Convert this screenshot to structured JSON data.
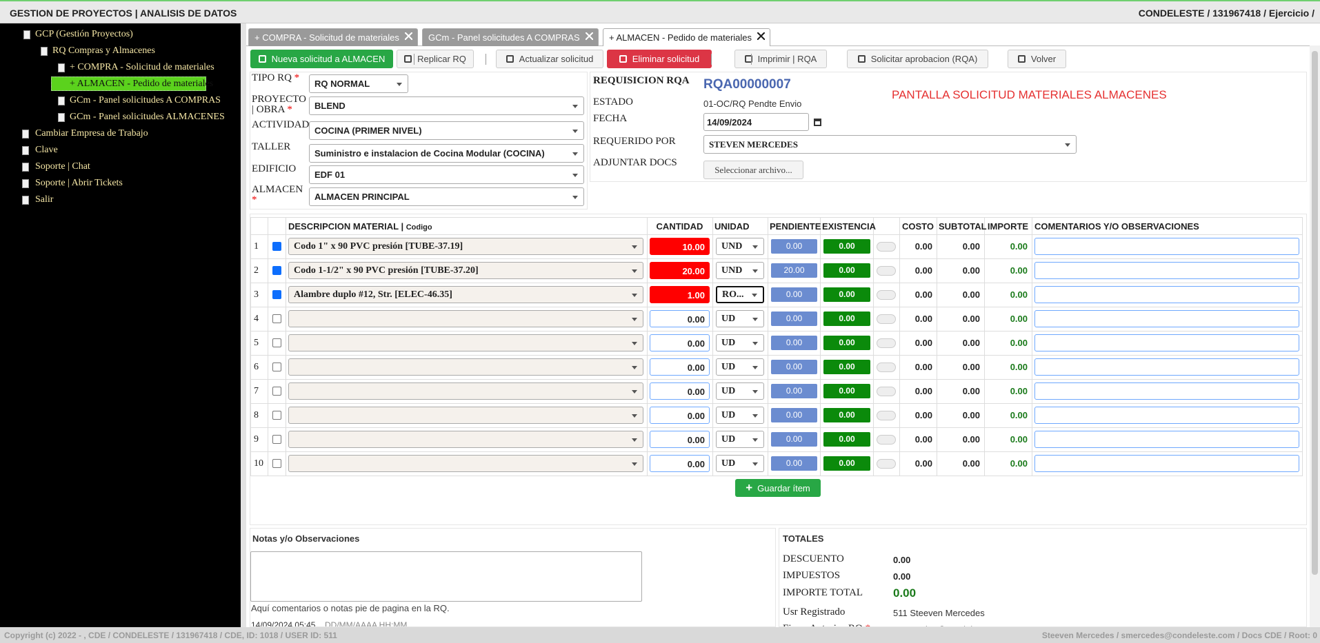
{
  "header": {
    "title": "GESTION DE PROYECTOS | ANALISIS DE DATOS",
    "account": "CONDELESTE / 131967418 / Ejercicio /"
  },
  "sidebar": {
    "tree": [
      {
        "label": "GCP (Gestión Proyectos)",
        "children": [
          {
            "label": "RQ Compras y Almacenes",
            "children": [
              {
                "label": "+ COMPRA - Solicitud de materiales"
              },
              {
                "label": "+ ALMACEN - Pedido de materiales",
                "selected": true
              },
              {
                "label": "GCm - Panel solicitudes A COMPRAS"
              },
              {
                "label": "GCm - Panel solicitudes ALMACENES"
              }
            ]
          }
        ]
      }
    ],
    "links": [
      "Cambiar Empresa de Trabajo",
      "Clave",
      "Soporte | Chat",
      "Soporte | Abrir Tickets",
      "Salir"
    ]
  },
  "tabs": [
    {
      "label": "+ COMPRA - Solicitud de materiales",
      "active": false
    },
    {
      "label": "GCm - Panel solicitudes A COMPRAS",
      "active": false
    },
    {
      "label": "+ ALMACEN - Pedido de materiales",
      "active": true
    }
  ],
  "toolbar": [
    "Nueva solicitud a ALMACEN",
    "Replicar RQ",
    "Actualizar solicitud",
    "Eliminar solicitud",
    "Imprimir | RQA",
    "Solicitar aprobacion (RQA)",
    "Volver"
  ],
  "form": {
    "fields": [
      {
        "label": "TIPO RQ",
        "required": "*",
        "value": "RQ NORMAL"
      },
      {
        "label": "PROYECTO | OBRA",
        "required": "*",
        "value": "BLEND"
      },
      {
        "label": "ACTIVIDAD",
        "value": "COCINA (PRIMER NIVEL)"
      },
      {
        "label": "TALLER",
        "value": "Suministro e instalacion de Cocina Modular (COCINA)"
      },
      {
        "label": "EDIFICIO",
        "value": "EDF 01"
      },
      {
        "label": "ALMACEN",
        "required": "*",
        "value": "ALMACEN PRINCIPAL"
      }
    ]
  },
  "request": {
    "title": "REQUISICION RQA",
    "number": "RQA00000007",
    "banner": "PANTALLA SOLICITUD MATERIALES ALMACENES",
    "status_label": "ESTADO",
    "status": "01-OC/RQ Pendte Envio",
    "date_label": "FECHA",
    "date": "14/09/2024",
    "requested_by_label": "REQUERIDO POR",
    "requested_by": "STEVEN MERCEDES",
    "attach_label": "ADJUNTAR DOCS",
    "attach_button": "Seleccionar archivo..."
  },
  "items": {
    "headers": {
      "description": "DESCRIPCION MATERIAL",
      "code": "Codigo",
      "quantity": "CANTIDAD",
      "unit": "UNIDAD",
      "pending": "PENDIENTE",
      "stock": "EXISTENCIA",
      "cost": "COSTO",
      "subtotal": "SUBTOTAL",
      "amount": "IMPORTE",
      "comments": "COMENTARIOS Y/O OBSERVACIONES"
    },
    "rows": [
      {
        "n": 1,
        "checked": true,
        "description": "Codo 1\" x 90 PVC presión [TUBE-37.19]",
        "quantity": "10.00",
        "unit": "UND",
        "pending": "0.00",
        "stock": "0.00",
        "cost": "0.00",
        "subtotal": "0.00",
        "amount": "0.00"
      },
      {
        "n": 2,
        "checked": true,
        "description": "Codo 1-1/2\" x 90 PVC presión [TUBE-37.20]",
        "quantity": "20.00",
        "unit": "UND",
        "pending": "20.00",
        "stock": "0.00",
        "cost": "0.00",
        "subtotal": "0.00",
        "amount": "0.00"
      },
      {
        "n": 3,
        "checked": true,
        "description": "Alambre duplo #12, Str. [ELEC-46.35]",
        "quantity": "1.00",
        "unit": "RO...",
        "pending": "0.00",
        "stock": "0.00",
        "cost": "0.00",
        "subtotal": "0.00",
        "amount": "0.00"
      },
      {
        "n": 4,
        "checked": false,
        "description": null,
        "quantity": "0.00",
        "unit": "UD",
        "pending": "0.00",
        "stock": "0.00",
        "cost": "0.00",
        "subtotal": "0.00",
        "amount": "0.00"
      },
      {
        "n": 5,
        "checked": false,
        "description": null,
        "quantity": "0.00",
        "unit": "UD",
        "pending": "0.00",
        "stock": "0.00",
        "cost": "0.00",
        "subtotal": "0.00",
        "amount": "0.00"
      },
      {
        "n": 6,
        "checked": false,
        "description": null,
        "quantity": "0.00",
        "unit": "UD",
        "pending": "0.00",
        "stock": "0.00",
        "cost": "0.00",
        "subtotal": "0.00",
        "amount": "0.00"
      },
      {
        "n": 7,
        "checked": false,
        "description": null,
        "quantity": "0.00",
        "unit": "UD",
        "pending": "0.00",
        "stock": "0.00",
        "cost": "0.00",
        "subtotal": "0.00",
        "amount": "0.00"
      },
      {
        "n": 8,
        "checked": false,
        "description": null,
        "quantity": "0.00",
        "unit": "UD",
        "pending": "0.00",
        "stock": "0.00",
        "cost": "0.00",
        "subtotal": "0.00",
        "amount": "0.00"
      },
      {
        "n": 9,
        "checked": false,
        "description": null,
        "quantity": "0.00",
        "unit": "UD",
        "pending": "0.00",
        "stock": "0.00",
        "cost": "0.00",
        "subtotal": "0.00",
        "amount": "0.00"
      },
      {
        "n": 10,
        "checked": false,
        "description": null,
        "quantity": "0.00",
        "unit": "UD",
        "pending": "0.00",
        "stock": "0.00",
        "cost": "0.00",
        "subtotal": "0.00",
        "amount": "0.00"
      }
    ],
    "save_button": "Guardar ítem"
  },
  "notes": {
    "title": "Notas y/o Observaciones",
    "hint": "Aquí comentarios o notas pie de pagina en la RQ.",
    "datetime": "14/09/2024 05:45",
    "format": "DD/MM/AAAA HH:MM"
  },
  "totals": {
    "title": "TOTALES",
    "rows": [
      {
        "label": "DESCUENTO",
        "value": "0.00"
      },
      {
        "label": "IMPUESTOS",
        "value": "0.00"
      },
      {
        "label": "IMPORTE TOTAL",
        "value": "0.00"
      },
      {
        "label": "Usr Registrado",
        "value": "511 Steeven Mercedes"
      },
      {
        "label": "Firma Autoriza RQ",
        "required": "*",
        "value": "smercedes@condeleste.com"
      }
    ]
  },
  "footer": {
    "left": "Copyright (c) 2022 - , CDE / CONDELESTE / 131967418 / CDE, ID: 1018 / USER ID: 511",
    "right": "Steeven Mercedes / smercedes@condeleste.com / Docs CDE / Root: 0"
  }
}
